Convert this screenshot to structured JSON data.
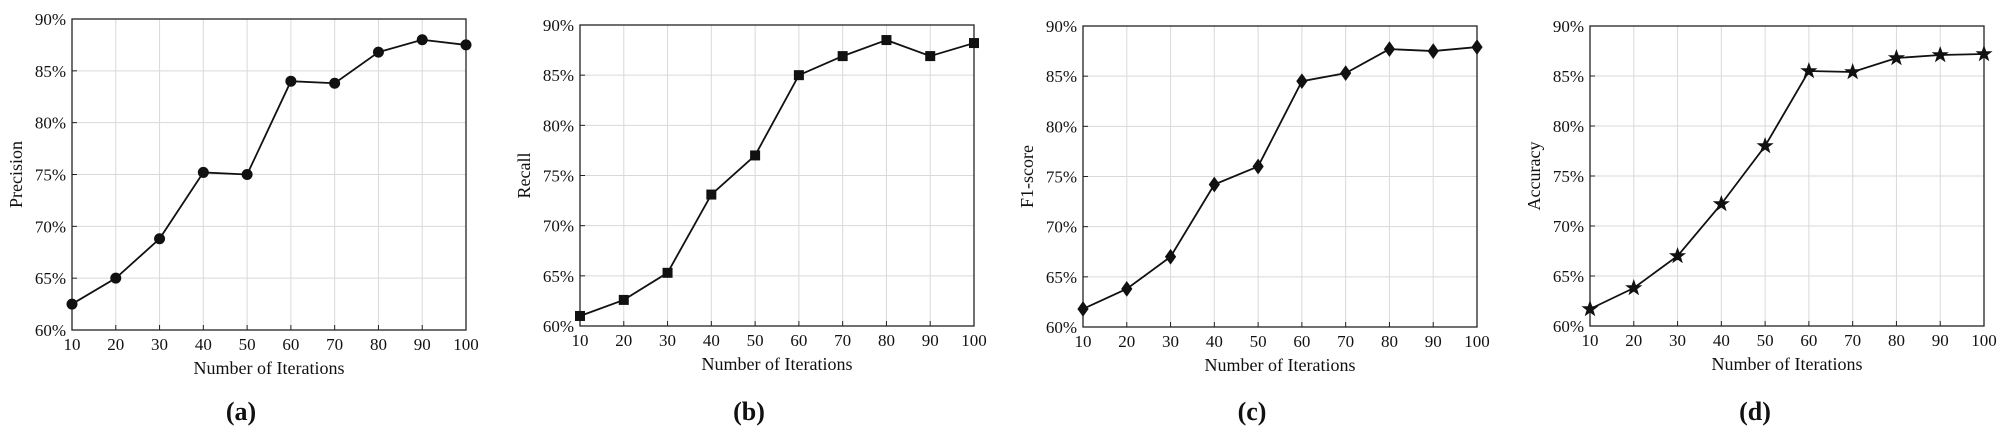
{
  "chart_data": [
    {
      "type": "line",
      "panel_label": "(a)",
      "xlabel": "Number of Iterations",
      "ylabel": "Precision",
      "x": [
        10,
        20,
        30,
        40,
        50,
        60,
        70,
        80,
        90,
        100
      ],
      "xlim": [
        10,
        100
      ],
      "xticks": [
        "10",
        "20",
        "30",
        "40",
        "50",
        "60",
        "70",
        "80",
        "90",
        "100"
      ],
      "ylim": [
        60,
        90
      ],
      "yticks": [
        "60%",
        "65%",
        "70%",
        "75%",
        "80%",
        "85%",
        "90%"
      ],
      "grid": true,
      "marker": "circle",
      "series": [
        {
          "values": [
            62.5,
            65.0,
            68.8,
            75.2,
            75.0,
            84.0,
            83.8,
            86.8,
            88.0,
            87.5
          ]
        }
      ]
    },
    {
      "type": "line",
      "panel_label": "(b)",
      "xlabel": "Number of Iterations",
      "ylabel": "Recall",
      "x": [
        10,
        20,
        30,
        40,
        50,
        60,
        70,
        80,
        90,
        100
      ],
      "xlim": [
        10,
        100
      ],
      "xticks": [
        "10",
        "20",
        "30",
        "40",
        "50",
        "60",
        "70",
        "80",
        "90",
        "100"
      ],
      "ylim": [
        60,
        90
      ],
      "yticks": [
        "60%",
        "65%",
        "70%",
        "75%",
        "80%",
        "85%",
        "90%"
      ],
      "grid": true,
      "marker": "square",
      "series": [
        {
          "values": [
            61.0,
            62.6,
            65.3,
            73.1,
            77.0,
            85.0,
            86.9,
            88.5,
            86.9,
            88.2
          ]
        }
      ]
    },
    {
      "type": "line",
      "panel_label": "(c)",
      "xlabel": "Number of Iterations",
      "ylabel": "F1-score",
      "x": [
        10,
        20,
        30,
        40,
        50,
        60,
        70,
        80,
        90,
        100
      ],
      "xlim": [
        10,
        100
      ],
      "xticks": [
        "10",
        "20",
        "30",
        "40",
        "50",
        "60",
        "70",
        "80",
        "90",
        "100"
      ],
      "ylim": [
        60,
        90
      ],
      "yticks": [
        "60%",
        "65%",
        "70%",
        "75%",
        "80%",
        "85%",
        "90%"
      ],
      "grid": true,
      "marker": "diamond",
      "series": [
        {
          "values": [
            61.8,
            63.8,
            67.0,
            74.2,
            76.0,
            84.5,
            85.3,
            87.7,
            87.5,
            87.9
          ]
        }
      ]
    },
    {
      "type": "line",
      "panel_label": "(d)",
      "xlabel": "Number of Iterations",
      "ylabel": "Accuracy",
      "x": [
        10,
        20,
        30,
        40,
        50,
        60,
        70,
        80,
        90,
        100
      ],
      "xlim": [
        10,
        100
      ],
      "xticks": [
        "10",
        "20",
        "30",
        "40",
        "50",
        "60",
        "70",
        "80",
        "90",
        "100"
      ],
      "ylim": [
        60,
        90
      ],
      "yticks": [
        "60%",
        "65%",
        "70%",
        "75%",
        "80%",
        "85%",
        "90%"
      ],
      "grid": true,
      "marker": "star",
      "series": [
        {
          "values": [
            61.7,
            63.8,
            67.0,
            72.2,
            78.0,
            85.5,
            85.4,
            86.8,
            87.1,
            87.2
          ]
        }
      ]
    }
  ]
}
